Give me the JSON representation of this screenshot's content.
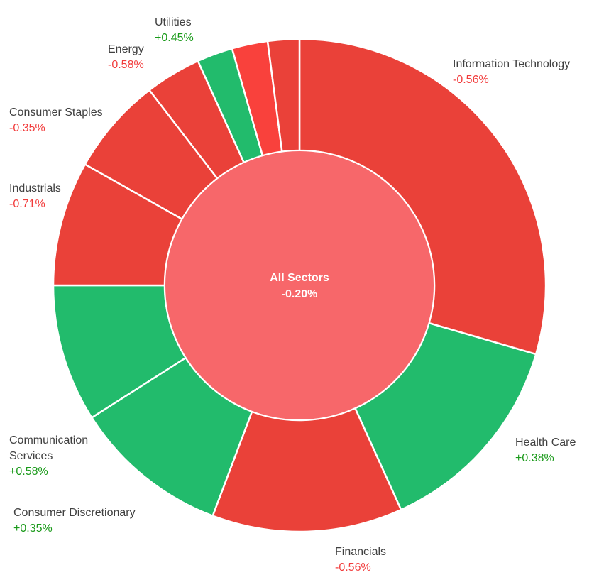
{
  "chart_data": {
    "type": "donut",
    "title": "",
    "center": {
      "label": "All Sectors",
      "change": "-0.20%"
    },
    "colors": {
      "negative": "#ea4139",
      "negative_small": "#f9413c",
      "positive": "#22bb6c",
      "center": "#f7676a",
      "positive_text": "#1a9a1a",
      "negative_text": "#f23c3c"
    },
    "series": [
      {
        "name": "Information Technology",
        "change": "-0.56%",
        "weight": 31.4,
        "direction": "down"
      },
      {
        "name": "Health Care",
        "change": "+0.38%",
        "weight": 14.6,
        "direction": "up"
      },
      {
        "name": "Financials",
        "change": "-0.56%",
        "weight": 13.3,
        "direction": "down"
      },
      {
        "name": "Consumer Discretionary",
        "change": "+0.35%",
        "weight": 10.9,
        "direction": "up"
      },
      {
        "name": "Communication Services",
        "change": "+0.58%",
        "weight": 9.6,
        "direction": "up"
      },
      {
        "name": "Industrials",
        "change": "-0.71%",
        "weight": 8.7,
        "direction": "down"
      },
      {
        "name": "Consumer Staples",
        "change": "-0.35%",
        "weight": 6.8,
        "direction": "down"
      },
      {
        "name": "Energy",
        "change": "-0.58%",
        "weight": 3.9,
        "direction": "down"
      },
      {
        "name": "Utilities",
        "change": "+0.45%",
        "weight": 2.5,
        "direction": "up"
      },
      {
        "name": "",
        "change": "",
        "weight": 2.5,
        "direction": "down_small"
      },
      {
        "name": "",
        "change": "",
        "weight": 2.2,
        "direction": "down"
      }
    ]
  }
}
